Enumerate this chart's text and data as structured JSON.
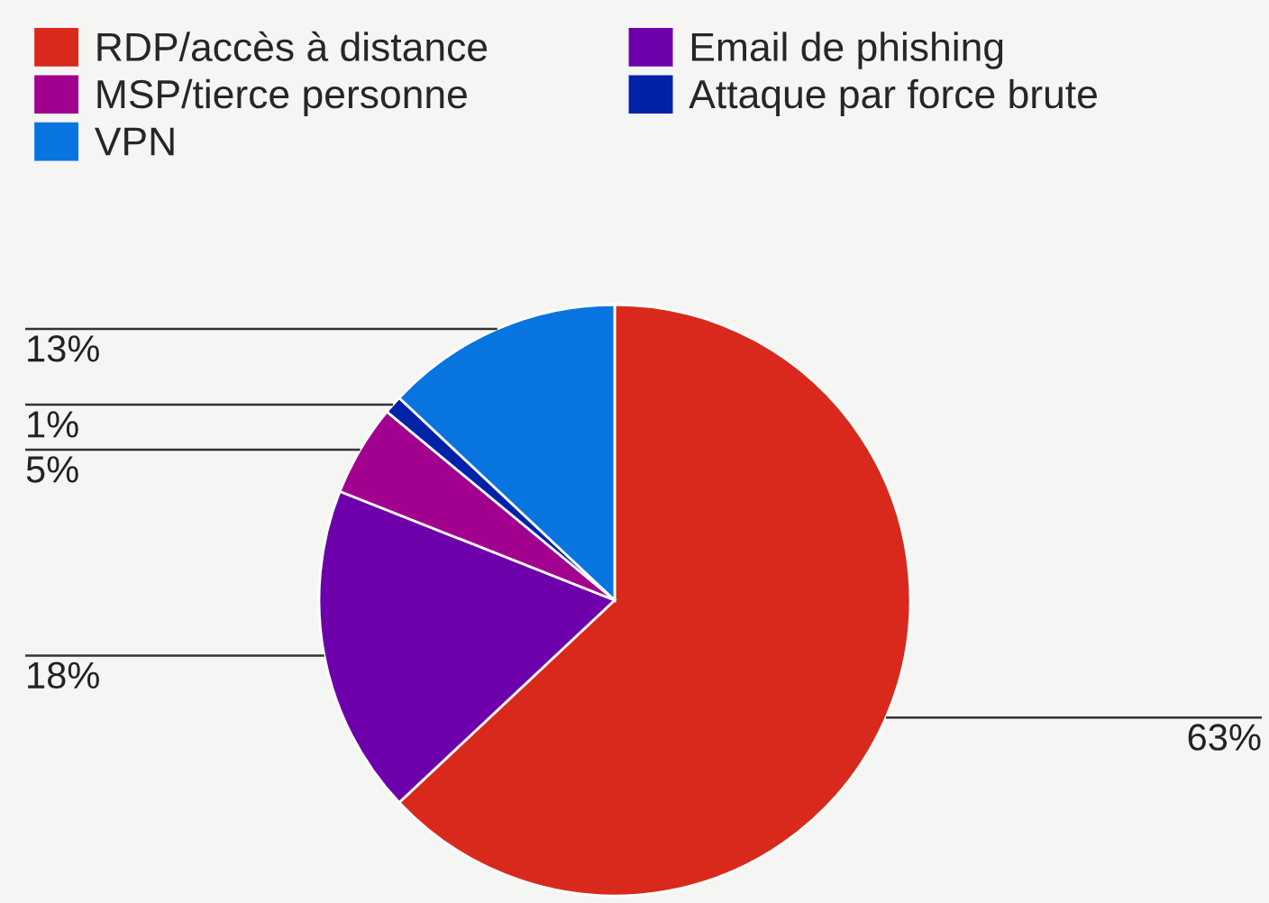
{
  "chart_data": {
    "type": "pie",
    "categories": [
      "RDP/accès à distance",
      "Email de phishing",
      "MSP/tierce personne",
      "Attaque par force brute",
      "VPN"
    ],
    "values": [
      63,
      18,
      5,
      1,
      13
    ],
    "value_labels": [
      "63%",
      "18%",
      "5%",
      "1%",
      "13%"
    ],
    "colors": [
      "#d9291c",
      "#6e00ab",
      "#a2008f",
      "#0022a8",
      "#0874e0"
    ],
    "legend": "top"
  }
}
